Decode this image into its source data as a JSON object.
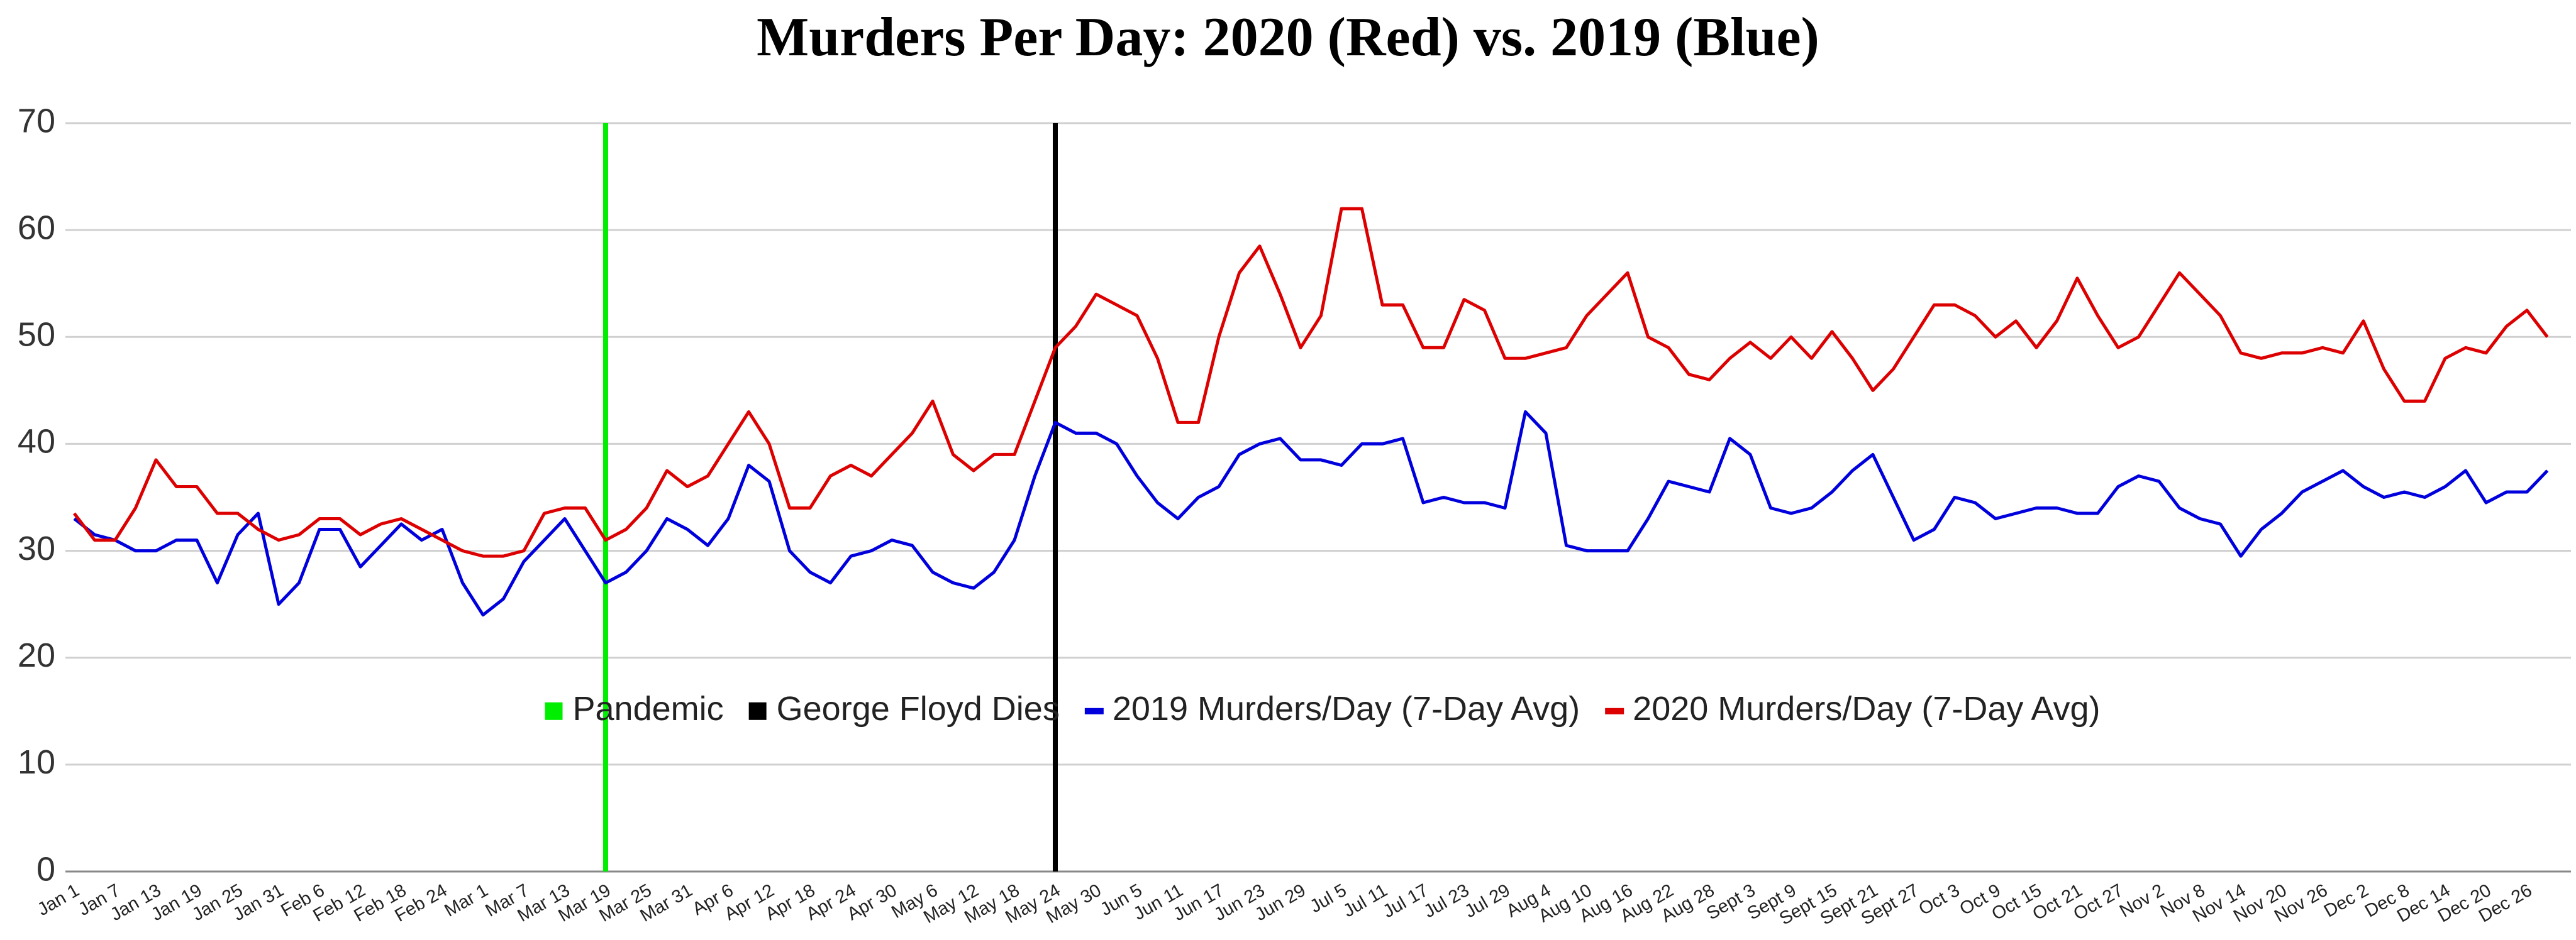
{
  "chart_data": {
    "type": "line",
    "title": "Murders Per Day: 2020 (Red) vs. 2019 (Blue)",
    "categories": [
      "Jan 1",
      null,
      "Jan 7",
      null,
      "Jan 13",
      null,
      "Jan 19",
      null,
      "Jan 25",
      null,
      "Jan 31",
      null,
      "Feb 6",
      null,
      "Feb 12",
      null,
      "Feb 18",
      null,
      "Feb 24",
      null,
      "Mar 1",
      null,
      "Mar 7",
      null,
      "Mar 13",
      null,
      "Mar 19",
      null,
      "Mar 25",
      null,
      "Mar 31",
      null,
      "Apr 6",
      null,
      "Apr 12",
      null,
      "Apr 18",
      null,
      "Apr 24",
      null,
      "Apr 30",
      null,
      "May 6",
      null,
      "May 12",
      null,
      "May 18",
      null,
      "May 24",
      null,
      "May 30",
      null,
      "Jun 5",
      null,
      "Jun 11",
      null,
      "Jun 17",
      null,
      "Jun 23",
      null,
      "Jun 29",
      null,
      "Jul 5",
      null,
      "Jul 11",
      null,
      "Jul 17",
      null,
      "Jul 23",
      null,
      "Jul 29",
      null,
      "Aug 4",
      null,
      "Aug 10",
      null,
      "Aug 16",
      null,
      "Aug 22",
      null,
      "Aug 28",
      null,
      "Sept 3",
      null,
      "Sept 9",
      null,
      "Sept 15",
      null,
      "Sept 21",
      null,
      "Sept 27",
      null,
      "Oct 3",
      null,
      "Oct 9",
      null,
      "Oct 15",
      null,
      "Oct 21",
      null,
      "Oct 27",
      null,
      "Nov 2",
      null,
      "Nov 8",
      null,
      "Nov 14",
      null,
      "Nov 20",
      null,
      "Nov 26",
      null,
      "Dec 2",
      null,
      "Dec 8",
      null,
      "Dec 14",
      null,
      "Dec 20",
      null,
      "Dec 26",
      null
    ],
    "series": [
      {
        "name": "2019 Murders/Day (7-Day Avg)",
        "color": "#0000dd",
        "values": [
          33,
          31.5,
          31,
          30,
          30,
          31,
          31,
          27,
          31.5,
          33.5,
          25,
          27,
          32,
          32,
          28.5,
          30.5,
          32.5,
          31,
          32,
          27,
          24,
          25.5,
          29,
          31,
          33,
          30,
          27,
          28,
          30,
          33,
          32,
          30.5,
          33,
          38,
          36.5,
          30,
          28,
          27,
          29.5,
          30,
          31,
          30.5,
          28,
          27,
          26.5,
          28,
          31,
          37,
          42,
          41,
          41,
          40,
          37,
          34.5,
          33,
          35,
          36,
          39,
          40,
          40.5,
          38.5,
          38.5,
          38,
          40,
          40,
          40.5,
          34.5,
          35,
          34.5,
          34.5,
          34,
          43,
          41,
          30.5,
          30,
          30,
          30,
          33,
          36.5,
          36,
          35.5,
          40.5,
          39,
          34,
          33.5,
          34,
          35.5,
          37.5,
          39,
          35,
          31,
          32,
          35,
          34.5,
          33,
          33.5,
          34,
          34,
          33.5,
          33.5,
          36,
          37,
          36.5,
          34,
          33,
          32.5,
          29.5,
          32,
          33.5,
          35.5,
          36.5,
          37.5,
          36,
          35,
          35.5,
          35,
          36,
          37.5,
          34.5,
          35.5,
          35.5,
          37.5
        ]
      },
      {
        "name": "2020 Murders/Day (7-Day Avg)",
        "color": "#dd0000",
        "values": [
          33.5,
          31,
          31,
          34,
          38.5,
          36,
          36,
          33.5,
          33.5,
          32,
          31,
          31.5,
          33,
          33,
          31.5,
          32.5,
          33,
          32,
          31,
          30,
          29.5,
          29.5,
          30,
          33.5,
          34,
          34,
          31,
          32,
          34,
          37.5,
          36,
          37,
          40,
          43,
          40,
          34,
          34,
          37,
          38,
          37,
          39,
          41,
          44,
          39,
          37.5,
          39,
          39,
          44,
          49,
          51,
          54,
          53,
          52,
          48,
          42,
          42,
          50,
          56,
          58.5,
          54,
          49,
          52,
          62,
          62,
          53,
          53,
          49,
          49,
          53.5,
          52.5,
          48,
          48,
          48.5,
          49,
          52,
          54,
          56,
          50,
          49,
          46.5,
          46,
          48,
          49.5,
          48,
          50,
          48,
          50.5,
          48,
          45,
          47,
          50,
          53,
          53,
          52,
          50,
          51.5,
          49,
          51.5,
          55.5,
          52,
          49,
          50,
          53,
          56,
          54,
          52,
          48.5,
          48,
          48.5,
          48.5,
          49,
          48.5,
          51.5,
          47,
          44,
          44,
          48,
          49,
          48.5,
          51,
          52.5,
          50
        ]
      }
    ],
    "markers": [
      {
        "name": "Pandemic",
        "color": "#00ee00",
        "category": "Mar 19"
      },
      {
        "name": "George Floyd Dies",
        "color": "#000000",
        "category": "May 24"
      }
    ],
    "ylim": [
      0,
      70
    ],
    "yticks": [
      0,
      10,
      20,
      30,
      40,
      50,
      60,
      70
    ],
    "grid": true,
    "legend": "center"
  }
}
